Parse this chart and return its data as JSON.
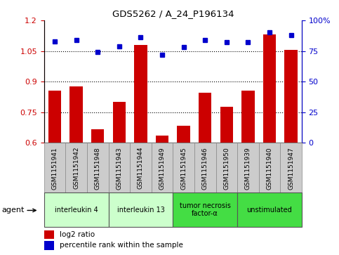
{
  "title": "GDS5262 / A_24_P196134",
  "samples": [
    "GSM1151941",
    "GSM1151942",
    "GSM1151948",
    "GSM1151943",
    "GSM1151944",
    "GSM1151949",
    "GSM1151945",
    "GSM1151946",
    "GSM1151950",
    "GSM1151939",
    "GSM1151940",
    "GSM1151947"
  ],
  "log2_ratio": [
    0.855,
    0.875,
    0.665,
    0.8,
    1.08,
    0.635,
    0.685,
    0.845,
    0.775,
    0.855,
    1.13,
    1.055
  ],
  "percentile": [
    83,
    84,
    74,
    79,
    86,
    72,
    78,
    84,
    82,
    82,
    90,
    88
  ],
  "ylim_left": [
    0.6,
    1.2
  ],
  "ylim_right": [
    0,
    100
  ],
  "yticks_left": [
    0.6,
    0.75,
    0.9,
    1.05,
    1.2
  ],
  "yticks_right": [
    0,
    25,
    50,
    75,
    100
  ],
  "hlines": [
    0.75,
    0.9,
    1.05
  ],
  "bar_color": "#cc0000",
  "dot_color": "#0000cc",
  "agents": [
    {
      "label": "interleukin 4",
      "start": 0,
      "end": 3,
      "color": "#ccffcc"
    },
    {
      "label": "interleukin 13",
      "start": 3,
      "end": 6,
      "color": "#ccffcc"
    },
    {
      "label": "tumor necrosis\nfactor-α",
      "start": 6,
      "end": 9,
      "color": "#44dd44"
    },
    {
      "label": "unstimulated",
      "start": 9,
      "end": 12,
      "color": "#44dd44"
    }
  ],
  "legend_bar_label": "log2 ratio",
  "legend_dot_label": "percentile rank within the sample",
  "agent_label": "agent",
  "bg_color": "#ffffff",
  "sample_bg_color": "#cccccc",
  "ymin": 0.6
}
